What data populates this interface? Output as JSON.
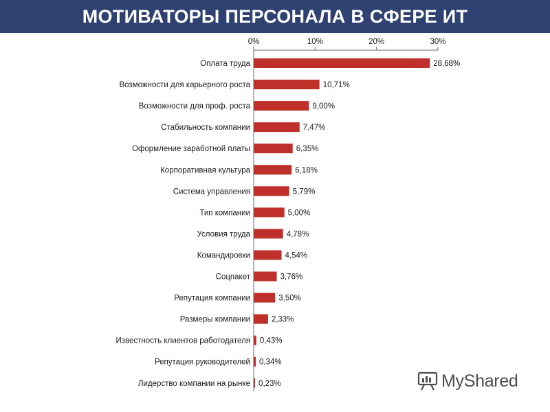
{
  "header": {
    "title": "МОТИВАТОРЫ ПЕРСОНАЛА В СФЕРЕ ИТ"
  },
  "watermark": {
    "text": "MyShared"
  },
  "colors": {
    "bar": "#c0302a",
    "header_bg": "#2f4170"
  },
  "chart_data": {
    "type": "bar",
    "orientation": "horizontal",
    "title": "",
    "xlabel": "",
    "ylabel": "",
    "xlim": [
      0,
      30
    ],
    "x_ticks": [
      "0%",
      "10%",
      "20%",
      "30%"
    ],
    "x_tick_values": [
      0,
      10,
      20,
      30
    ],
    "x_axis_position": "top",
    "grid": false,
    "categories": [
      "Оплата труда",
      "Возможности для карьерного роста",
      "Возможности для проф. роста",
      "Стабильность компании",
      "Оформление заработной платы",
      "Корпоративная культура",
      "Система управления",
      "Тип компании",
      "Условия труда",
      "Командировки",
      "Соцпакет",
      "Репутация компании",
      "Размеры компании",
      "Известность клиентов работодателя",
      "Репутация руководителей",
      "Лидерство компании на рынке"
    ],
    "values": [
      28.68,
      10.71,
      9.0,
      7.47,
      6.35,
      6.18,
      5.79,
      5.0,
      4.78,
      4.54,
      3.76,
      3.5,
      2.33,
      0.43,
      0.34,
      0.23
    ],
    "value_labels": [
      "28,68%",
      "10,71%",
      "9,00%",
      "7,47%",
      "6,35%",
      "6,18%",
      "5,79%",
      "5,00%",
      "4,78%",
      "4,54%",
      "3,76%",
      "3,50%",
      "2,33%",
      "0,43%",
      "0,34%",
      "0,23%"
    ]
  }
}
